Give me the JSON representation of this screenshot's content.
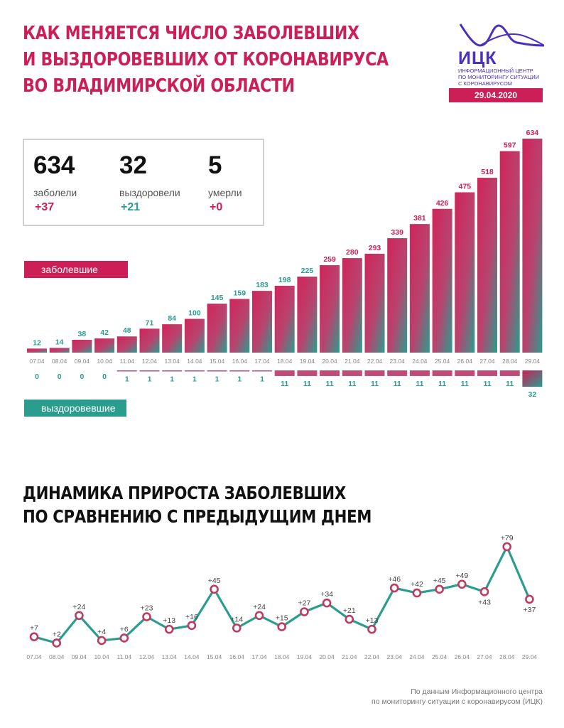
{
  "header": {
    "title_lines": [
      "КАК МЕНЯЕТСЯ ЧИСЛО ЗАБОЛЕВШИХ",
      "И ВЫЗДОРОВЕВШИХ ОТ КОРОНАВИРУСА",
      "ВО ВЛАДИМИРСКОЙ ОБЛАСТИ"
    ]
  },
  "logo": {
    "name": "ИЦК",
    "sub": [
      "ИНФОРМАЦИОННЫЙ ЦЕНТР",
      "ПО МОНИТОРИНГУ СИТУАЦИИ",
      "С КОРОНАВИРУСОМ"
    ],
    "date": "29.04.2020"
  },
  "stats": [
    {
      "value": "634",
      "label": "заболели",
      "delta": "+37",
      "color": "#cc1f57"
    },
    {
      "value": "32",
      "label": "выздоровели",
      "delta": "+21",
      "color": "#2a9d8f"
    },
    {
      "value": "5",
      "label": "умерли",
      "delta": "+0",
      "color": "#cc1f57"
    }
  ],
  "labels": {
    "infected_pill": "заболевшие",
    "recovered_pill": "выздоровевшие"
  },
  "section2": {
    "title_lines": [
      "ДИНАМИКА ПРИРОСТА ЗАБОЛЕВШИХ",
      "ПО СРАВНЕНИЮ С ПРЕДЫДУЩИМ ДНЕМ"
    ]
  },
  "source": [
    "По данным Информационного центра",
    "по мониторингу ситуации с коронавирусом (ИЦК)"
  ],
  "colors": {
    "red": "#cc1f57",
    "teal": "#2a9d8f",
    "dark": "#111111",
    "purple": "#4b2fbf"
  },
  "chart_data": [
    {
      "type": "bar",
      "categories": [
        "07.04",
        "08.04",
        "09.04",
        "10.04",
        "11.04",
        "12.04",
        "13.04",
        "14.04",
        "15.04",
        "16.04",
        "17.04",
        "18.04",
        "19.04",
        "20.04",
        "21.04",
        "22.04",
        "23.04",
        "24.04",
        "25.04",
        "26.04",
        "27.04",
        "28.04",
        "29.04"
      ],
      "series": [
        {
          "name": "заболевшие",
          "values": [
            12,
            14,
            38,
            42,
            48,
            71,
            84,
            100,
            145,
            159,
            183,
            198,
            225,
            259,
            280,
            293,
            339,
            381,
            426,
            475,
            518,
            597,
            634
          ]
        },
        {
          "name": "выздоровевшие",
          "values": [
            0,
            0,
            0,
            0,
            1,
            1,
            1,
            1,
            1,
            1,
            1,
            11,
            11,
            11,
            11,
            11,
            11,
            11,
            11,
            11,
            11,
            11,
            32
          ]
        }
      ],
      "ylim": [
        0,
        634
      ]
    },
    {
      "type": "line",
      "x": [
        "07.04",
        "08.04",
        "09.04",
        "10.04",
        "11.04",
        "12.04",
        "13.04",
        "14.04",
        "15.04",
        "16.04",
        "17.04",
        "18.04",
        "19.04",
        "20.04",
        "21.04",
        "22.04",
        "23.04",
        "24.04",
        "25.04",
        "26.04",
        "27.04",
        "28.04",
        "29.04"
      ],
      "values": [
        7,
        2,
        24,
        4,
        6,
        23,
        13,
        16,
        45,
        14,
        24,
        15,
        27,
        34,
        21,
        13,
        46,
        42,
        45,
        49,
        43,
        79,
        37
      ],
      "labels": [
        "+7",
        "+2",
        "+24",
        "+4",
        "+6",
        "+23",
        "+13",
        "+16",
        "+45",
        "+14",
        "+24",
        "+15",
        "+27",
        "+34",
        "+21",
        "+13",
        "+46",
        "+42",
        "+45",
        "+49",
        "+43",
        "+79",
        "+37"
      ],
      "ylim": [
        0,
        79
      ]
    }
  ]
}
